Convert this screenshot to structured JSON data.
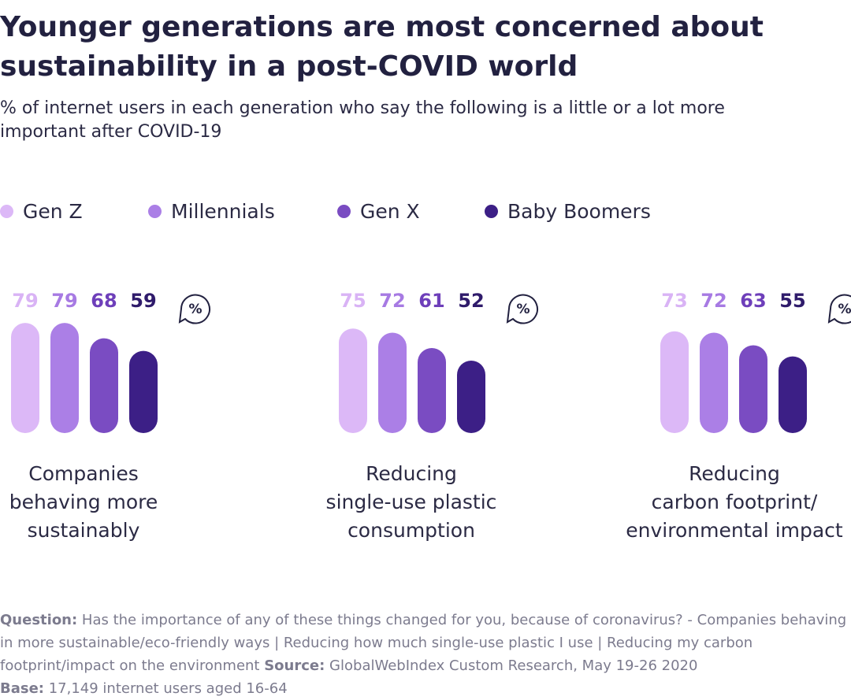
{
  "header": {
    "title": "Younger generations are most concerned about sustainability in a post-COVID world",
    "subtitle": "% of internet users in each generation who say the following is a little or a lot more important after COVID-19"
  },
  "legend": [
    {
      "label": "Gen Z",
      "color": "#dcb8f7"
    },
    {
      "label": "Millennials",
      "color": "#ab7fe6"
    },
    {
      "label": "Gen X",
      "color": "#7a4cc2"
    },
    {
      "label": "Baby Boomers",
      "color": "#3c1f86"
    }
  ],
  "chart_data": {
    "type": "bar",
    "unit_badge": "%",
    "series_names": [
      "Gen Z",
      "Millennials",
      "Gen X",
      "Baby Boomers"
    ],
    "series_colors": [
      "#dcb8f7",
      "#ab7fe6",
      "#7a4cc2",
      "#3c1f86"
    ],
    "value_label_colors": [
      "#d9b3f5",
      "#a77ae3",
      "#6e3fba",
      "#2f1b6b"
    ],
    "groups": [
      {
        "label_lines": [
          "Companies",
          "behaving more",
          "sustainably"
        ],
        "values": [
          79,
          79,
          68,
          59
        ]
      },
      {
        "label_lines": [
          "Reducing",
          "single-use plastic",
          "consumption"
        ],
        "values": [
          75,
          72,
          61,
          52
        ]
      },
      {
        "label_lines": [
          "Reducing",
          "carbon footprint/",
          "environmental impact"
        ],
        "values": [
          73,
          72,
          63,
          55
        ]
      }
    ]
  },
  "footnote": {
    "question_label": "Question:",
    "question_text": " Has the importance of any of these things changed for you, because of coronavirus? - Companies behaving in more sustainable/eco-friendly ways | Reducing how much single-use plastic I use | Reducing my carbon footprint/impact on the environment ",
    "source_label": "Source:",
    "source_text": " GlobalWebIndex Custom Research, May 19-26 2020",
    "base_label": "Base:",
    "base_text": " 17,149 internet users aged 16-64"
  }
}
